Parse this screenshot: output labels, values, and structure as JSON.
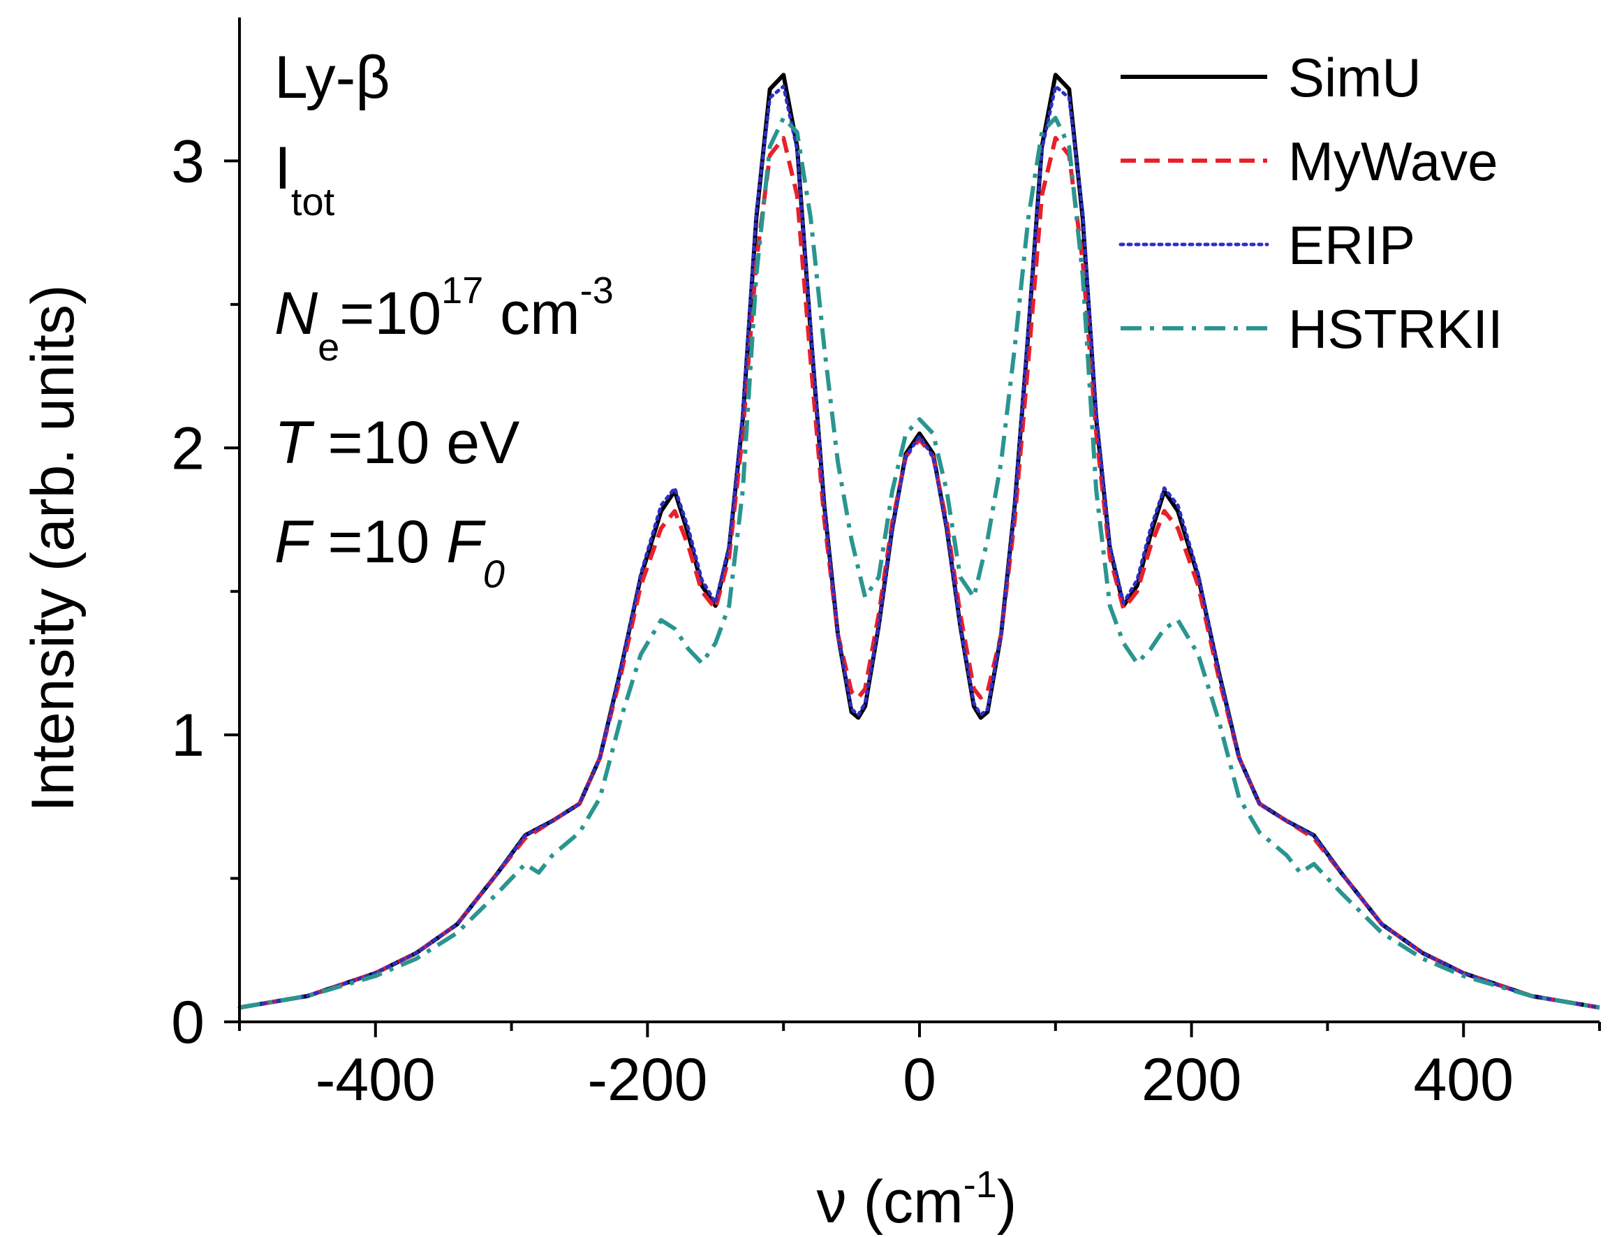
{
  "chart_data": {
    "type": "line",
    "title": "",
    "xlabel": {
      "main": "ν (cm",
      "sup": "-1",
      "tail": ")"
    },
    "ylabel": "Intensity (arb. units)",
    "xlim": [
      -500,
      500
    ],
    "ylim": [
      0,
      3.5
    ],
    "xticks": [
      -400,
      -200,
      0,
      200,
      400
    ],
    "xtick_labels": [
      "-400",
      "-200",
      "0",
      "200",
      "400"
    ],
    "xminor": [
      -500,
      -300,
      -100,
      100,
      300,
      500
    ],
    "yticks": [
      0,
      1,
      2,
      3
    ],
    "ytick_labels": [
      "0",
      "1",
      "2",
      "3"
    ],
    "yminor": [
      0.5,
      1.5,
      2.5
    ],
    "legend_position": "top-right",
    "grid": false,
    "annotations": {
      "line": "Ly-β",
      "profile_main": "I",
      "profile_sub": "tot",
      "density_var": "N",
      "density_sub": "e",
      "density_eq": "=10",
      "density_exp": "17",
      "density_unit": " cm",
      "density_unit_exp": "-3",
      "temp_var": "T",
      "temp_rest": " =10 eV",
      "field_var": "F",
      "field_rest": " =10 ",
      "field_unit": "F",
      "field_unit_sub": "0"
    },
    "series": [
      {
        "name": "SimU",
        "color": "#000000",
        "dash": "solid",
        "x": [
          -500,
          -450,
          -400,
          -370,
          -340,
          -310,
          -290,
          -270,
          -250,
          -235,
          -220,
          -205,
          -190,
          -180,
          -170,
          -160,
          -150,
          -140,
          -130,
          -120,
          -110,
          -100,
          -90,
          -80,
          -70,
          -60,
          -50,
          -45,
          -40,
          -30,
          -20,
          -10,
          0,
          10,
          20,
          30,
          40,
          45,
          50,
          60,
          70,
          80,
          90,
          100,
          110,
          120,
          130,
          140,
          150,
          160,
          170,
          180,
          190,
          205,
          220,
          235,
          250,
          270,
          290,
          310,
          340,
          370,
          400,
          450,
          500
        ],
        "y": [
          0.05,
          0.09,
          0.17,
          0.24,
          0.34,
          0.52,
          0.65,
          0.7,
          0.76,
          0.92,
          1.22,
          1.55,
          1.78,
          1.85,
          1.7,
          1.52,
          1.45,
          1.65,
          2.1,
          2.8,
          3.25,
          3.3,
          3.05,
          2.4,
          1.8,
          1.35,
          1.08,
          1.06,
          1.1,
          1.38,
          1.72,
          1.98,
          2.05,
          1.98,
          1.72,
          1.38,
          1.1,
          1.06,
          1.08,
          1.35,
          1.8,
          2.4,
          3.05,
          3.3,
          3.25,
          2.8,
          2.1,
          1.65,
          1.45,
          1.52,
          1.7,
          1.85,
          1.78,
          1.55,
          1.22,
          0.92,
          0.76,
          0.7,
          0.65,
          0.52,
          0.34,
          0.24,
          0.17,
          0.09,
          0.05
        ]
      },
      {
        "name": "MyWave",
        "color": "#e8202a",
        "dash": "dashed",
        "x": [
          -500,
          -450,
          -400,
          -370,
          -340,
          -310,
          -290,
          -270,
          -250,
          -235,
          -220,
          -205,
          -190,
          -180,
          -170,
          -160,
          -150,
          -140,
          -130,
          -120,
          -110,
          -100,
          -90,
          -80,
          -70,
          -60,
          -50,
          -45,
          -40,
          -30,
          -20,
          -10,
          0,
          10,
          20,
          30,
          40,
          45,
          50,
          60,
          70,
          80,
          90,
          100,
          110,
          120,
          130,
          140,
          150,
          160,
          170,
          180,
          190,
          205,
          220,
          235,
          250,
          270,
          290,
          310,
          340,
          370,
          400,
          450,
          500
        ],
        "y": [
          0.05,
          0.09,
          0.17,
          0.24,
          0.34,
          0.52,
          0.64,
          0.7,
          0.76,
          0.92,
          1.2,
          1.52,
          1.72,
          1.78,
          1.66,
          1.5,
          1.44,
          1.62,
          2.05,
          2.65,
          3.02,
          3.08,
          2.88,
          2.3,
          1.75,
          1.35,
          1.15,
          1.13,
          1.16,
          1.42,
          1.74,
          1.97,
          2.03,
          1.97,
          1.74,
          1.42,
          1.16,
          1.13,
          1.15,
          1.35,
          1.75,
          2.3,
          2.88,
          3.08,
          3.02,
          2.65,
          2.05,
          1.62,
          1.44,
          1.5,
          1.66,
          1.78,
          1.72,
          1.52,
          1.2,
          0.92,
          0.76,
          0.7,
          0.64,
          0.52,
          0.34,
          0.24,
          0.17,
          0.09,
          0.05
        ]
      },
      {
        "name": "ERIP",
        "color": "#2b2fc8",
        "dash": "dotted",
        "x": [
          -500,
          -450,
          -400,
          -370,
          -340,
          -310,
          -290,
          -270,
          -250,
          -235,
          -220,
          -205,
          -190,
          -180,
          -170,
          -160,
          -150,
          -140,
          -130,
          -120,
          -110,
          -100,
          -90,
          -80,
          -70,
          -60,
          -50,
          -45,
          -40,
          -30,
          -20,
          -10,
          0,
          10,
          20,
          30,
          40,
          45,
          50,
          60,
          70,
          80,
          90,
          100,
          110,
          120,
          130,
          140,
          150,
          160,
          170,
          180,
          190,
          205,
          220,
          235,
          250,
          270,
          290,
          310,
          340,
          370,
          400,
          450,
          500
        ],
        "y": [
          0.05,
          0.09,
          0.17,
          0.24,
          0.34,
          0.52,
          0.65,
          0.7,
          0.76,
          0.92,
          1.22,
          1.56,
          1.8,
          1.86,
          1.72,
          1.54,
          1.46,
          1.66,
          2.12,
          2.82,
          3.22,
          3.26,
          3.04,
          2.42,
          1.8,
          1.35,
          1.09,
          1.07,
          1.11,
          1.38,
          1.72,
          1.97,
          2.04,
          1.97,
          1.72,
          1.38,
          1.11,
          1.07,
          1.09,
          1.35,
          1.8,
          2.42,
          3.04,
          3.26,
          3.22,
          2.82,
          2.12,
          1.66,
          1.46,
          1.54,
          1.72,
          1.86,
          1.8,
          1.56,
          1.22,
          0.92,
          0.76,
          0.7,
          0.65,
          0.52,
          0.34,
          0.24,
          0.17,
          0.09,
          0.05
        ]
      },
      {
        "name": "HSTRKII",
        "color": "#2a9590",
        "dash": "dashdot",
        "x": [
          -500,
          -450,
          -400,
          -370,
          -340,
          -310,
          -290,
          -280,
          -270,
          -250,
          -235,
          -220,
          -205,
          -190,
          -180,
          -170,
          -160,
          -150,
          -140,
          -130,
          -120,
          -110,
          -100,
          -90,
          -80,
          -70,
          -60,
          -50,
          -40,
          -30,
          -20,
          -10,
          0,
          10,
          20,
          30,
          40,
          50,
          60,
          70,
          80,
          90,
          100,
          110,
          120,
          130,
          140,
          150,
          160,
          170,
          180,
          190,
          205,
          220,
          235,
          250,
          270,
          280,
          290,
          310,
          340,
          370,
          400,
          450,
          500
        ],
        "y": [
          0.05,
          0.09,
          0.16,
          0.22,
          0.31,
          0.45,
          0.55,
          0.52,
          0.58,
          0.66,
          0.78,
          1.05,
          1.28,
          1.4,
          1.37,
          1.3,
          1.25,
          1.32,
          1.45,
          1.85,
          2.6,
          3.05,
          3.15,
          3.1,
          2.8,
          2.35,
          1.95,
          1.68,
          1.48,
          1.55,
          1.85,
          2.05,
          2.1,
          2.05,
          1.85,
          1.55,
          1.48,
          1.68,
          1.95,
          2.35,
          2.8,
          3.1,
          3.15,
          3.05,
          2.6,
          1.85,
          1.45,
          1.32,
          1.25,
          1.3,
          1.37,
          1.4,
          1.28,
          1.05,
          0.78,
          0.66,
          0.58,
          0.52,
          0.55,
          0.45,
          0.31,
          0.22,
          0.16,
          0.09,
          0.05
        ]
      }
    ]
  }
}
